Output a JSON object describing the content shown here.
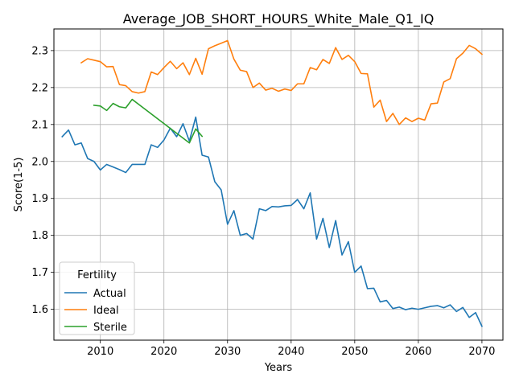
{
  "chart_data": {
    "type": "line",
    "title": "Average_JOB_SHORT_HOURS_White_Male_Q1_IQ",
    "xlabel": "Years",
    "ylabel": "Score(1-5)",
    "xlim": [
      2002.7,
      2073.3
    ],
    "ylim": [
      1.5165,
      2.3585
    ],
    "xticks": [
      2010,
      2020,
      2030,
      2040,
      2050,
      2060,
      2070
    ],
    "yticks": [
      1.6,
      1.7,
      1.8,
      1.9,
      2.0,
      2.1,
      2.2,
      2.3
    ],
    "grid": true,
    "legend": {
      "title": "Fertility",
      "placement": "lower-left"
    },
    "series": [
      {
        "name": "Actual",
        "color": "#1f77b4",
        "x": [
          2004,
          2005,
          2006,
          2007,
          2008,
          2009,
          2010,
          2011,
          2012,
          2013,
          2014,
          2015,
          2016,
          2017,
          2018,
          2019,
          2020,
          2021,
          2022,
          2023,
          2024,
          2025,
          2026,
          2027,
          2028,
          2029,
          2030,
          2031,
          2032,
          2033,
          2034,
          2035,
          2036,
          2037,
          2038,
          2039,
          2040,
          2041,
          2042,
          2043,
          2044,
          2045,
          2046,
          2047,
          2048,
          2049,
          2050,
          2051,
          2052,
          2053,
          2054,
          2055,
          2056,
          2057,
          2058,
          2059,
          2060,
          2061,
          2062,
          2063,
          2064,
          2065,
          2066,
          2067,
          2068,
          2069,
          2070
        ],
        "y": [
          2.067,
          2.085,
          2.045,
          2.05,
          2.008,
          2.0,
          1.977,
          1.992,
          1.985,
          1.978,
          1.97,
          1.992,
          1.992,
          1.992,
          2.045,
          2.038,
          2.058,
          2.09,
          2.067,
          2.102,
          2.055,
          2.12,
          2.017,
          2.012,
          1.945,
          1.923,
          1.83,
          1.867,
          1.8,
          1.805,
          1.79,
          1.872,
          1.867,
          1.878,
          1.877,
          1.88,
          1.881,
          1.897,
          1.872,
          1.915,
          1.79,
          1.846,
          1.767,
          1.84,
          1.747,
          1.783,
          1.7,
          1.717,
          1.656,
          1.657,
          1.62,
          1.624,
          1.602,
          1.606,
          1.599,
          1.603,
          1.6,
          1.604,
          1.608,
          1.61,
          1.604,
          1.612,
          1.594,
          1.605,
          1.578,
          1.591,
          1.554
        ]
      },
      {
        "name": "Ideal",
        "color": "#ff7f0e",
        "x": [
          2007,
          2008,
          2009,
          2010,
          2011,
          2012,
          2013,
          2014,
          2015,
          2016,
          2017,
          2018,
          2019,
          2020,
          2021,
          2022,
          2023,
          2024,
          2025,
          2026,
          2027,
          2028,
          2029,
          2030,
          2031,
          2032,
          2033,
          2034,
          2035,
          2036,
          2037,
          2038,
          2039,
          2040,
          2041,
          2042,
          2043,
          2044,
          2045,
          2046,
          2047,
          2048,
          2049,
          2050,
          2051,
          2052,
          2053,
          2054,
          2055,
          2056,
          2057,
          2058,
          2059,
          2060,
          2061,
          2062,
          2063,
          2064,
          2065,
          2066,
          2067,
          2068,
          2069,
          2070
        ],
        "y": [
          2.267,
          2.278,
          2.274,
          2.27,
          2.256,
          2.257,
          2.208,
          2.205,
          2.189,
          2.185,
          2.189,
          2.242,
          2.235,
          2.254,
          2.271,
          2.251,
          2.267,
          2.235,
          2.279,
          2.236,
          2.305,
          2.313,
          2.32,
          2.327,
          2.277,
          2.247,
          2.243,
          2.2,
          2.212,
          2.193,
          2.198,
          2.19,
          2.196,
          2.192,
          2.21,
          2.21,
          2.254,
          2.248,
          2.276,
          2.265,
          2.308,
          2.276,
          2.287,
          2.27,
          2.238,
          2.237,
          2.147,
          2.166,
          2.108,
          2.13,
          2.1,
          2.118,
          2.108,
          2.117,
          2.112,
          2.156,
          2.158,
          2.215,
          2.224,
          2.278,
          2.293,
          2.314,
          2.305,
          2.29
        ]
      },
      {
        "name": "Sterile",
        "color": "#2ca02c",
        "x": [
          2009,
          2010,
          2011,
          2012,
          2013,
          2014,
          2015,
          2024,
          2025,
          2026
        ],
        "y": [
          2.152,
          2.15,
          2.138,
          2.157,
          2.148,
          2.145,
          2.168,
          2.05,
          2.088,
          2.068
        ]
      }
    ]
  }
}
